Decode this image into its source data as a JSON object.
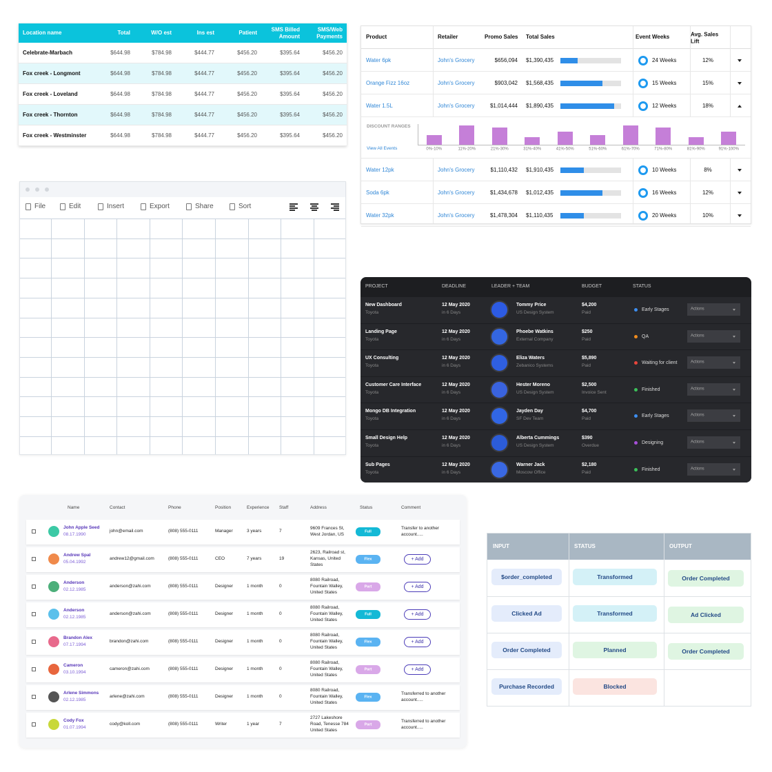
{
  "table1": {
    "columns": [
      "Location name",
      "Total",
      "W/O est",
      "Ins est",
      "Patient",
      "SMS Billed Amount",
      "SMS/Web Payments"
    ],
    "rows": [
      [
        "Celebrate-Marbach",
        "$644.98",
        "$784.98",
        "$444.77",
        "$456.20",
        "$395.64",
        "$456.20"
      ],
      [
        "Fox creek - Longmont",
        "$644.98",
        "$784.98",
        "$444.77",
        "$456.20",
        "$395.64",
        "$456.20"
      ],
      [
        "Fox creek - Loveland",
        "$644.98",
        "$784.98",
        "$444.77",
        "$456.20",
        "$395.64",
        "$456.20"
      ],
      [
        "Fox creek - Thornton",
        "$644.98",
        "$784.98",
        "$444.77",
        "$456.20",
        "$395.64",
        "$456.20"
      ],
      [
        "Fox creek - Westminster",
        "$644.98",
        "$784.98",
        "$444.77",
        "$456.20",
        "$395.64",
        "$456.20"
      ]
    ]
  },
  "table2": {
    "columns": [
      "Product",
      "Retailer",
      "Promo Sales",
      "Total Sales",
      "Event Weeks",
      "Avg. Sales Lift"
    ],
    "progress_lim": [
      0,
      100
    ],
    "progress_color": "#2f8ee8",
    "rows": [
      {
        "product": "Water 6pk",
        "retailer": "John's Grocery",
        "promo": "$656,094",
        "total": "$1,390,435",
        "progress": 28,
        "weeks": "24 Weeks",
        "lift": "12%"
      },
      {
        "product": "Orange Fizz 16oz",
        "retailer": "John's Grocery",
        "promo": "$903,042",
        "total": "$1,568,435",
        "progress": 69,
        "weeks": "15 Weeks",
        "lift": "15%"
      },
      {
        "product": "Water 1.5L",
        "retailer": "John's Grocery",
        "promo": "$1,014,444",
        "total": "$1,890,435",
        "progress": 89,
        "weeks": "12 Weeks",
        "lift": "18%",
        "details": {
          "title": "DISCOUNT RANGES",
          "link": "View All Events",
          "type": "bar",
          "color": "#c57fd8",
          "ylim": [
            0,
            30
          ],
          "categories": [
            "0%-10%",
            "11%-20%",
            "21%-30%",
            "31%-40%",
            "41%-50%",
            "51%-60%",
            "61%-70%",
            "71%-80%",
            "81%-90%",
            "91%-100%"
          ],
          "values": [
            14,
            28,
            25,
            11,
            19,
            14,
            28,
            25,
            11,
            19
          ]
        }
      },
      {
        "product": "Water 12pk",
        "retailer": "John's Grocery",
        "promo": "$1,110,432",
        "total": "$1,910,435",
        "progress": 39,
        "weeks": "10 Weeks",
        "lift": "8%"
      },
      {
        "product": "Soda 6pk",
        "retailer": "John's Grocery",
        "promo": "$1,434,678",
        "total": "$1,012,435",
        "progress": 69,
        "weeks": "16 Weeks",
        "lift": "12%"
      },
      {
        "product": "Water 32pk",
        "retailer": "John's Grocery",
        "promo": "$1,478,304",
        "total": "$1,110,435",
        "progress": 39,
        "weeks": "20 Weeks",
        "lift": "10%"
      }
    ]
  },
  "spreadsheet": {
    "toolbar": [
      "File",
      "Edit",
      "Insert",
      "Export",
      "Share",
      "Sort"
    ]
  },
  "projects": {
    "columns": [
      "PROJECT",
      "DEADLINE",
      "LEADER + TEAM",
      "BUDGET",
      "STATUS"
    ],
    "action_label": "Actions",
    "rows": [
      {
        "project": "New Dashboard",
        "client": "Toyota",
        "deadline": "12 May 2020",
        "due": "in 6 Days",
        "leader": "Tommy Price",
        "team": "US Design System",
        "budget": "$4,200",
        "budget_note": "Paid",
        "status": "Early Stages",
        "status_color": "#3d8ef0"
      },
      {
        "project": "Landing Page",
        "client": "Toyota",
        "deadline": "12 May 2020",
        "due": "in 6 Days",
        "leader": "Phoebe Watkins",
        "team": "External Company",
        "budget": "$250",
        "budget_note": "Paid",
        "status": "QA",
        "status_color": "#f08c1e"
      },
      {
        "project": "UX Consulting",
        "client": "Toyota",
        "deadline": "12 May 2020",
        "due": "in 6 Days",
        "leader": "Eliza Waters",
        "team": "Zebanico Systems",
        "budget": "$5,890",
        "budget_note": "Paid",
        "status": "Waiting for client",
        "status_color": "#e8453c"
      },
      {
        "project": "Customer Care Interface",
        "client": "Toyota",
        "deadline": "12 May 2020",
        "due": "in 6 Days",
        "leader": "Hester Moreno",
        "team": "US Design System",
        "budget": "$2,500",
        "budget_note": "Invoice Sent",
        "status": "Finished",
        "status_color": "#3cc15a"
      },
      {
        "project": "Mongo DB Integration",
        "client": "Toyota",
        "deadline": "12 May 2020",
        "due": "in 6 Days",
        "leader": "Jayden Day",
        "team": "SF Dev Team",
        "budget": "$4,700",
        "budget_note": "Paid",
        "status": "Early Stages",
        "status_color": "#3d8ef0"
      },
      {
        "project": "Small Design Help",
        "client": "Toyota",
        "deadline": "12 May 2020",
        "due": "in 6 Days",
        "leader": "Alberta Cummings",
        "team": "US Design System",
        "budget": "$390",
        "budget_note": "Overdue",
        "status": "Designing",
        "status_color": "#a64fd8"
      },
      {
        "project": "Sub Pages",
        "client": "Toyota",
        "deadline": "12 May 2020",
        "due": "in 6 Days",
        "leader": "Warner Jack",
        "team": "Moscow Office",
        "budget": "$2,180",
        "budget_note": "Paid",
        "status": "Finished",
        "status_color": "#3cc15a"
      }
    ]
  },
  "people": {
    "columns": [
      "Name",
      "Contact",
      "Phone",
      "Position",
      "Experience",
      "Staff",
      "Address",
      "Status",
      "Comment"
    ],
    "rows": [
      {
        "name": "John Apple Seed",
        "date": "08.17.1990",
        "contact": "john@email.com",
        "phone": "(808) 555-0111",
        "position": "Manager",
        "experience": "3 years",
        "staff": 7,
        "address": [
          "9609 Frances St,",
          "West Jordan, US"
        ],
        "status": {
          "text": "Full",
          "color": "#14b9d6"
        },
        "comment": [
          "Transfer to another",
          "account....."
        ]
      },
      {
        "name": "Andrew Spal",
        "date": "05.04.1992",
        "contact": "andrew12@gmail.com",
        "phone": "(808) 555-0111",
        "position": "CEO",
        "experience": "7 years",
        "staff": 19,
        "address": [
          "2623, Railroad st,",
          "Kansas, United",
          "States"
        ],
        "status": {
          "text": "Flex",
          "color": "#5ab3f2"
        },
        "action": "+ Add"
      },
      {
        "name": "Anderson",
        "date": "02.12.1985",
        "contact": "anderson@zahi.com",
        "phone": "(808) 555-0111",
        "position": "Designer",
        "experience": "1 month",
        "staff": 0,
        "address": [
          "8080 Railroad,",
          "Fountain Walley,",
          "United States"
        ],
        "status": {
          "text": "Part",
          "color": "#d9a8e8"
        },
        "action": "+ Add"
      },
      {
        "name": "Anderson",
        "date": "02.12.1985",
        "contact": "anderson@zahi.com",
        "phone": "(808) 555-0111",
        "position": "Designer",
        "experience": "1 month",
        "staff": 0,
        "address": [
          "8080 Railroad,",
          "Fountain Walley,",
          "United States"
        ],
        "status": {
          "text": "Full",
          "color": "#14b9d6"
        },
        "action": "+ Add"
      },
      {
        "name": "Brandon Alex",
        "date": "07.17.1994",
        "contact": "brandon@zahi.com",
        "phone": "(808) 555-0111",
        "position": "Designer",
        "experience": "1 month",
        "staff": 0,
        "address": [
          "8080 Railroad,",
          "Fountain Walley,",
          "United States"
        ],
        "status": {
          "text": "Flex",
          "color": "#5ab3f2"
        },
        "action": "+ Add"
      },
      {
        "name": "Cameron",
        "date": "03.10.1994",
        "contact": "cameron@zahi.com",
        "phone": "(808) 555-0111",
        "position": "Designer",
        "experience": "1 month",
        "staff": 0,
        "address": [
          "8080 Railroad,",
          "Fountain Walley,",
          "United States"
        ],
        "status": {
          "text": "Part",
          "color": "#d9a8e8"
        },
        "action": "+ Add"
      },
      {
        "name": "Arlene Simmons",
        "date": "02.12.1985",
        "contact": "arlene@zahi.com",
        "phone": "(808) 555-0111",
        "position": "Designer",
        "experience": "1 month",
        "staff": 0,
        "address": [
          "8080 Railroad,",
          "Fountain Walley,",
          "United States"
        ],
        "status": {
          "text": "Flex",
          "color": "#5ab3f2"
        },
        "comment": [
          "Transferred to another",
          "account....."
        ]
      },
      {
        "name": "Cody Fox",
        "date": "01.07.1994",
        "contact": "cody@koll.com",
        "phone": "(808) 555-0111",
        "position": "Writer",
        "experience": "1 year",
        "staff": 7,
        "address": [
          "2727 Lakeshore",
          "Road, Tenesse 784",
          "United States"
        ],
        "status": {
          "text": "Part",
          "color": "#d9a8e8"
        },
        "comment": [
          "Transferred to another",
          "account....."
        ]
      }
    ]
  },
  "flow": {
    "columns": [
      "INPUT",
      "STATUS",
      "OUTPUT"
    ],
    "rows": [
      [
        {
          "text": "$order_completed",
          "color": "#e4ecfb"
        },
        {
          "text": "Transformed",
          "color": "#d4f1f7"
        },
        {
          "text": "Order Completed",
          "color": "#dff5e2"
        }
      ],
      [
        {
          "text": "Clicked Ad",
          "color": "#e4ecfb"
        },
        {
          "text": "Transformed",
          "color": "#d4f1f7"
        },
        {
          "text": "Ad Clicked",
          "color": "#dff5e2"
        }
      ],
      [
        {
          "text": "Order Completed",
          "color": "#e4ecfb"
        },
        {
          "text": "Planned",
          "color": "#dff5e2"
        },
        {
          "text": "Order Completed",
          "color": "#dff5e2"
        }
      ],
      [
        {
          "text": "Purchase Recorded",
          "color": "#e4ecfb"
        },
        {
          "text": "Blocked",
          "color": "#fbe4e0"
        },
        null
      ]
    ]
  }
}
